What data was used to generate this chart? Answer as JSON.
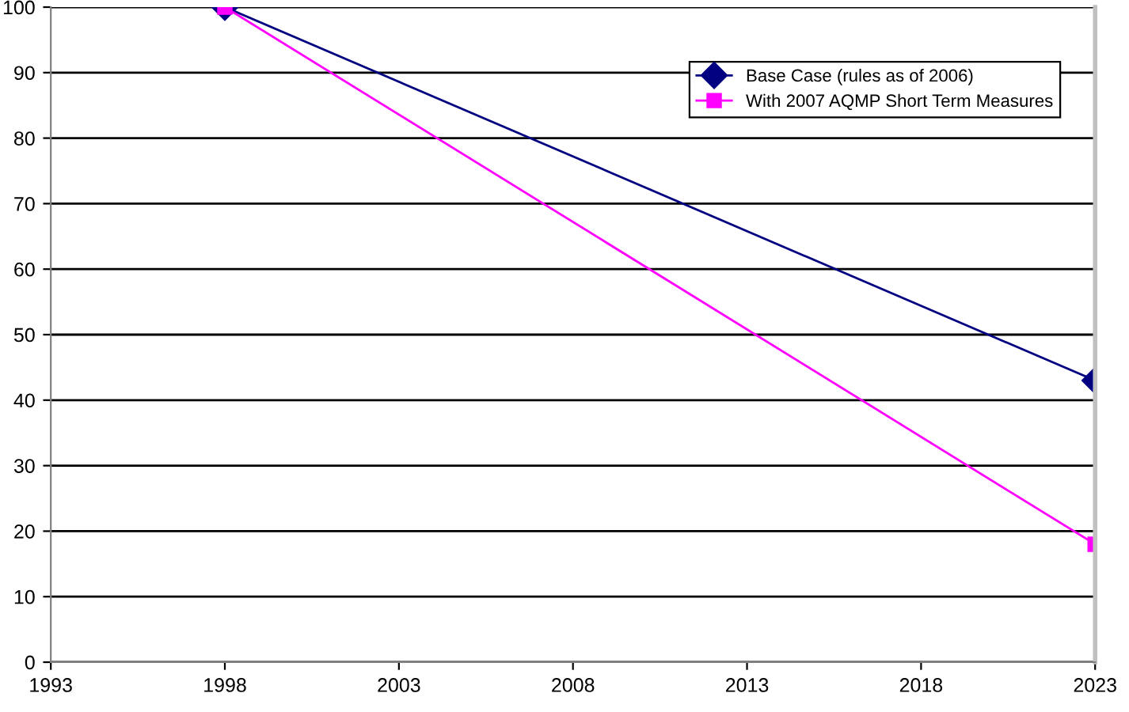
{
  "chart_data": {
    "type": "line",
    "x": [
      1998,
      2023
    ],
    "series": [
      {
        "name": "Base Case (rules as of 2006)",
        "color": "#000080",
        "values": [
          100,
          43
        ],
        "marker": "diamond"
      },
      {
        "name": "With 2007 AQMP Short Term Measures",
        "color": "#ff00ff",
        "values": [
          100,
          18
        ],
        "marker": "square"
      }
    ],
    "xlim": [
      1993,
      2023
    ],
    "xticks": [
      1993,
      1998,
      2003,
      2008,
      2013,
      2018,
      2023
    ],
    "ylim": [
      0,
      100
    ],
    "yticks": [
      0,
      10,
      20,
      30,
      40,
      50,
      60,
      70,
      80,
      90,
      100
    ],
    "grid": "y",
    "legend": "top right",
    "line_style": "solid"
  }
}
